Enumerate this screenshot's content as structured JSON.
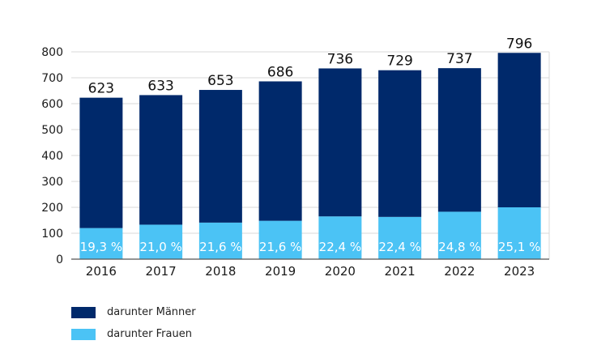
{
  "colors": {
    "maenner": "#00296b",
    "frauen": "#4bc3f5",
    "grid": "#d9d9d9",
    "axis": "#555555"
  },
  "chart_data": {
    "type": "bar",
    "stacked": true,
    "categories": [
      "2016",
      "2017",
      "2018",
      "2019",
      "2020",
      "2021",
      "2022",
      "2023"
    ],
    "totals": [
      623,
      633,
      653,
      686,
      736,
      729,
      737,
      796
    ],
    "total_labels": [
      "623",
      "633",
      "653",
      "686",
      "736",
      "729",
      "737",
      "796"
    ],
    "series": [
      {
        "name": "darunter Frauen",
        "values": [
          120,
          133,
          141,
          148,
          165,
          163,
          183,
          200
        ]
      },
      {
        "name": "darunter Männer",
        "values": [
          503,
          500,
          512,
          538,
          571,
          566,
          554,
          596
        ]
      }
    ],
    "frauen_share_labels": [
      "19,3 %",
      "21,0 %",
      "21,6 %",
      "21,6 %",
      "22,4 %",
      "22,4 %",
      "24,8 %",
      "25,1 %"
    ],
    "ylim": [
      0,
      800
    ],
    "yticks": [
      0,
      100,
      200,
      300,
      400,
      500,
      600,
      700,
      800
    ],
    "grid": true,
    "legend_position": "bottom-left"
  },
  "legend": {
    "items": [
      {
        "label": "darunter Männer",
        "color": "#00296b"
      },
      {
        "label": "darunter Frauen",
        "color": "#4bc3f5"
      }
    ]
  }
}
